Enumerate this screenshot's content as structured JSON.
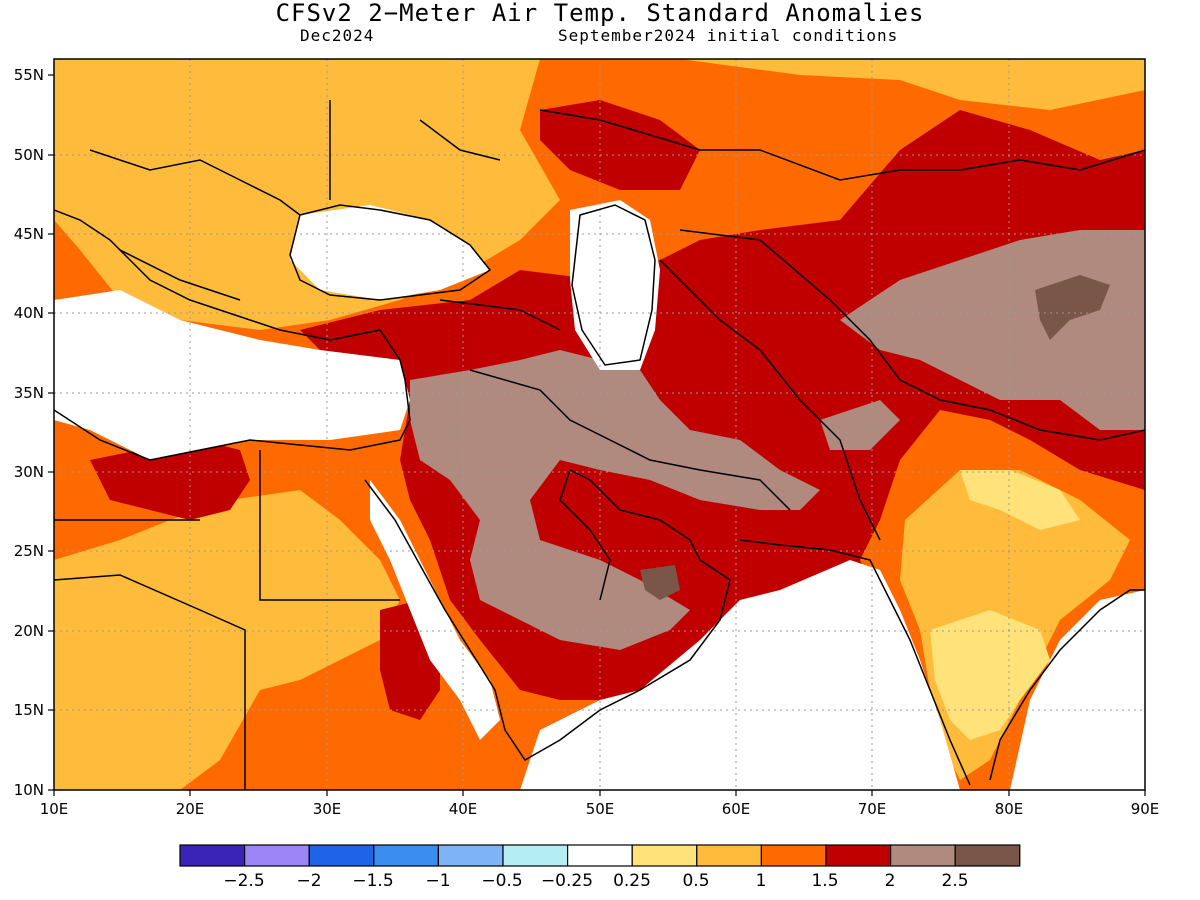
{
  "title": "CFSv2 2−Meter Air Temp. Standard Anomalies",
  "subtitle_left": "Dec2024",
  "subtitle_right": "September2024 initial conditions",
  "map": {
    "extent": {
      "lon": [
        10,
        90
      ],
      "lat": [
        10,
        56
      ]
    },
    "lon_ticks": [
      "10E",
      "20E",
      "30E",
      "40E",
      "50E",
      "60E",
      "70E",
      "80E",
      "90E"
    ],
    "lat_ticks": [
      "55N",
      "50N",
      "45N",
      "40N",
      "35N",
      "30N",
      "25N",
      "20N",
      "15N",
      "10N"
    ],
    "grid": "dotted"
  },
  "colorbar": {
    "bins": [
      {
        "color": "#3a24b8"
      },
      {
        "color": "#9c86f5"
      },
      {
        "color": "#1f64e6"
      },
      {
        "color": "#3b8ef0"
      },
      {
        "color": "#7cb4f5"
      },
      {
        "color": "#b4eef2"
      },
      {
        "color": "#ffffff"
      },
      {
        "color": "#ffe27a"
      },
      {
        "color": "#ffbc3c"
      },
      {
        "color": "#ff6a00"
      },
      {
        "color": "#c00000"
      },
      {
        "color": "#b08a7e"
      },
      {
        "color": "#7a5648"
      }
    ],
    "labels": [
      "−2.5",
      "−2",
      "−1.5",
      "−1",
      "−0.5",
      "−0.25",
      "0.25",
      "0.5",
      "1",
      "1.5",
      "2",
      "2.5"
    ]
  }
}
